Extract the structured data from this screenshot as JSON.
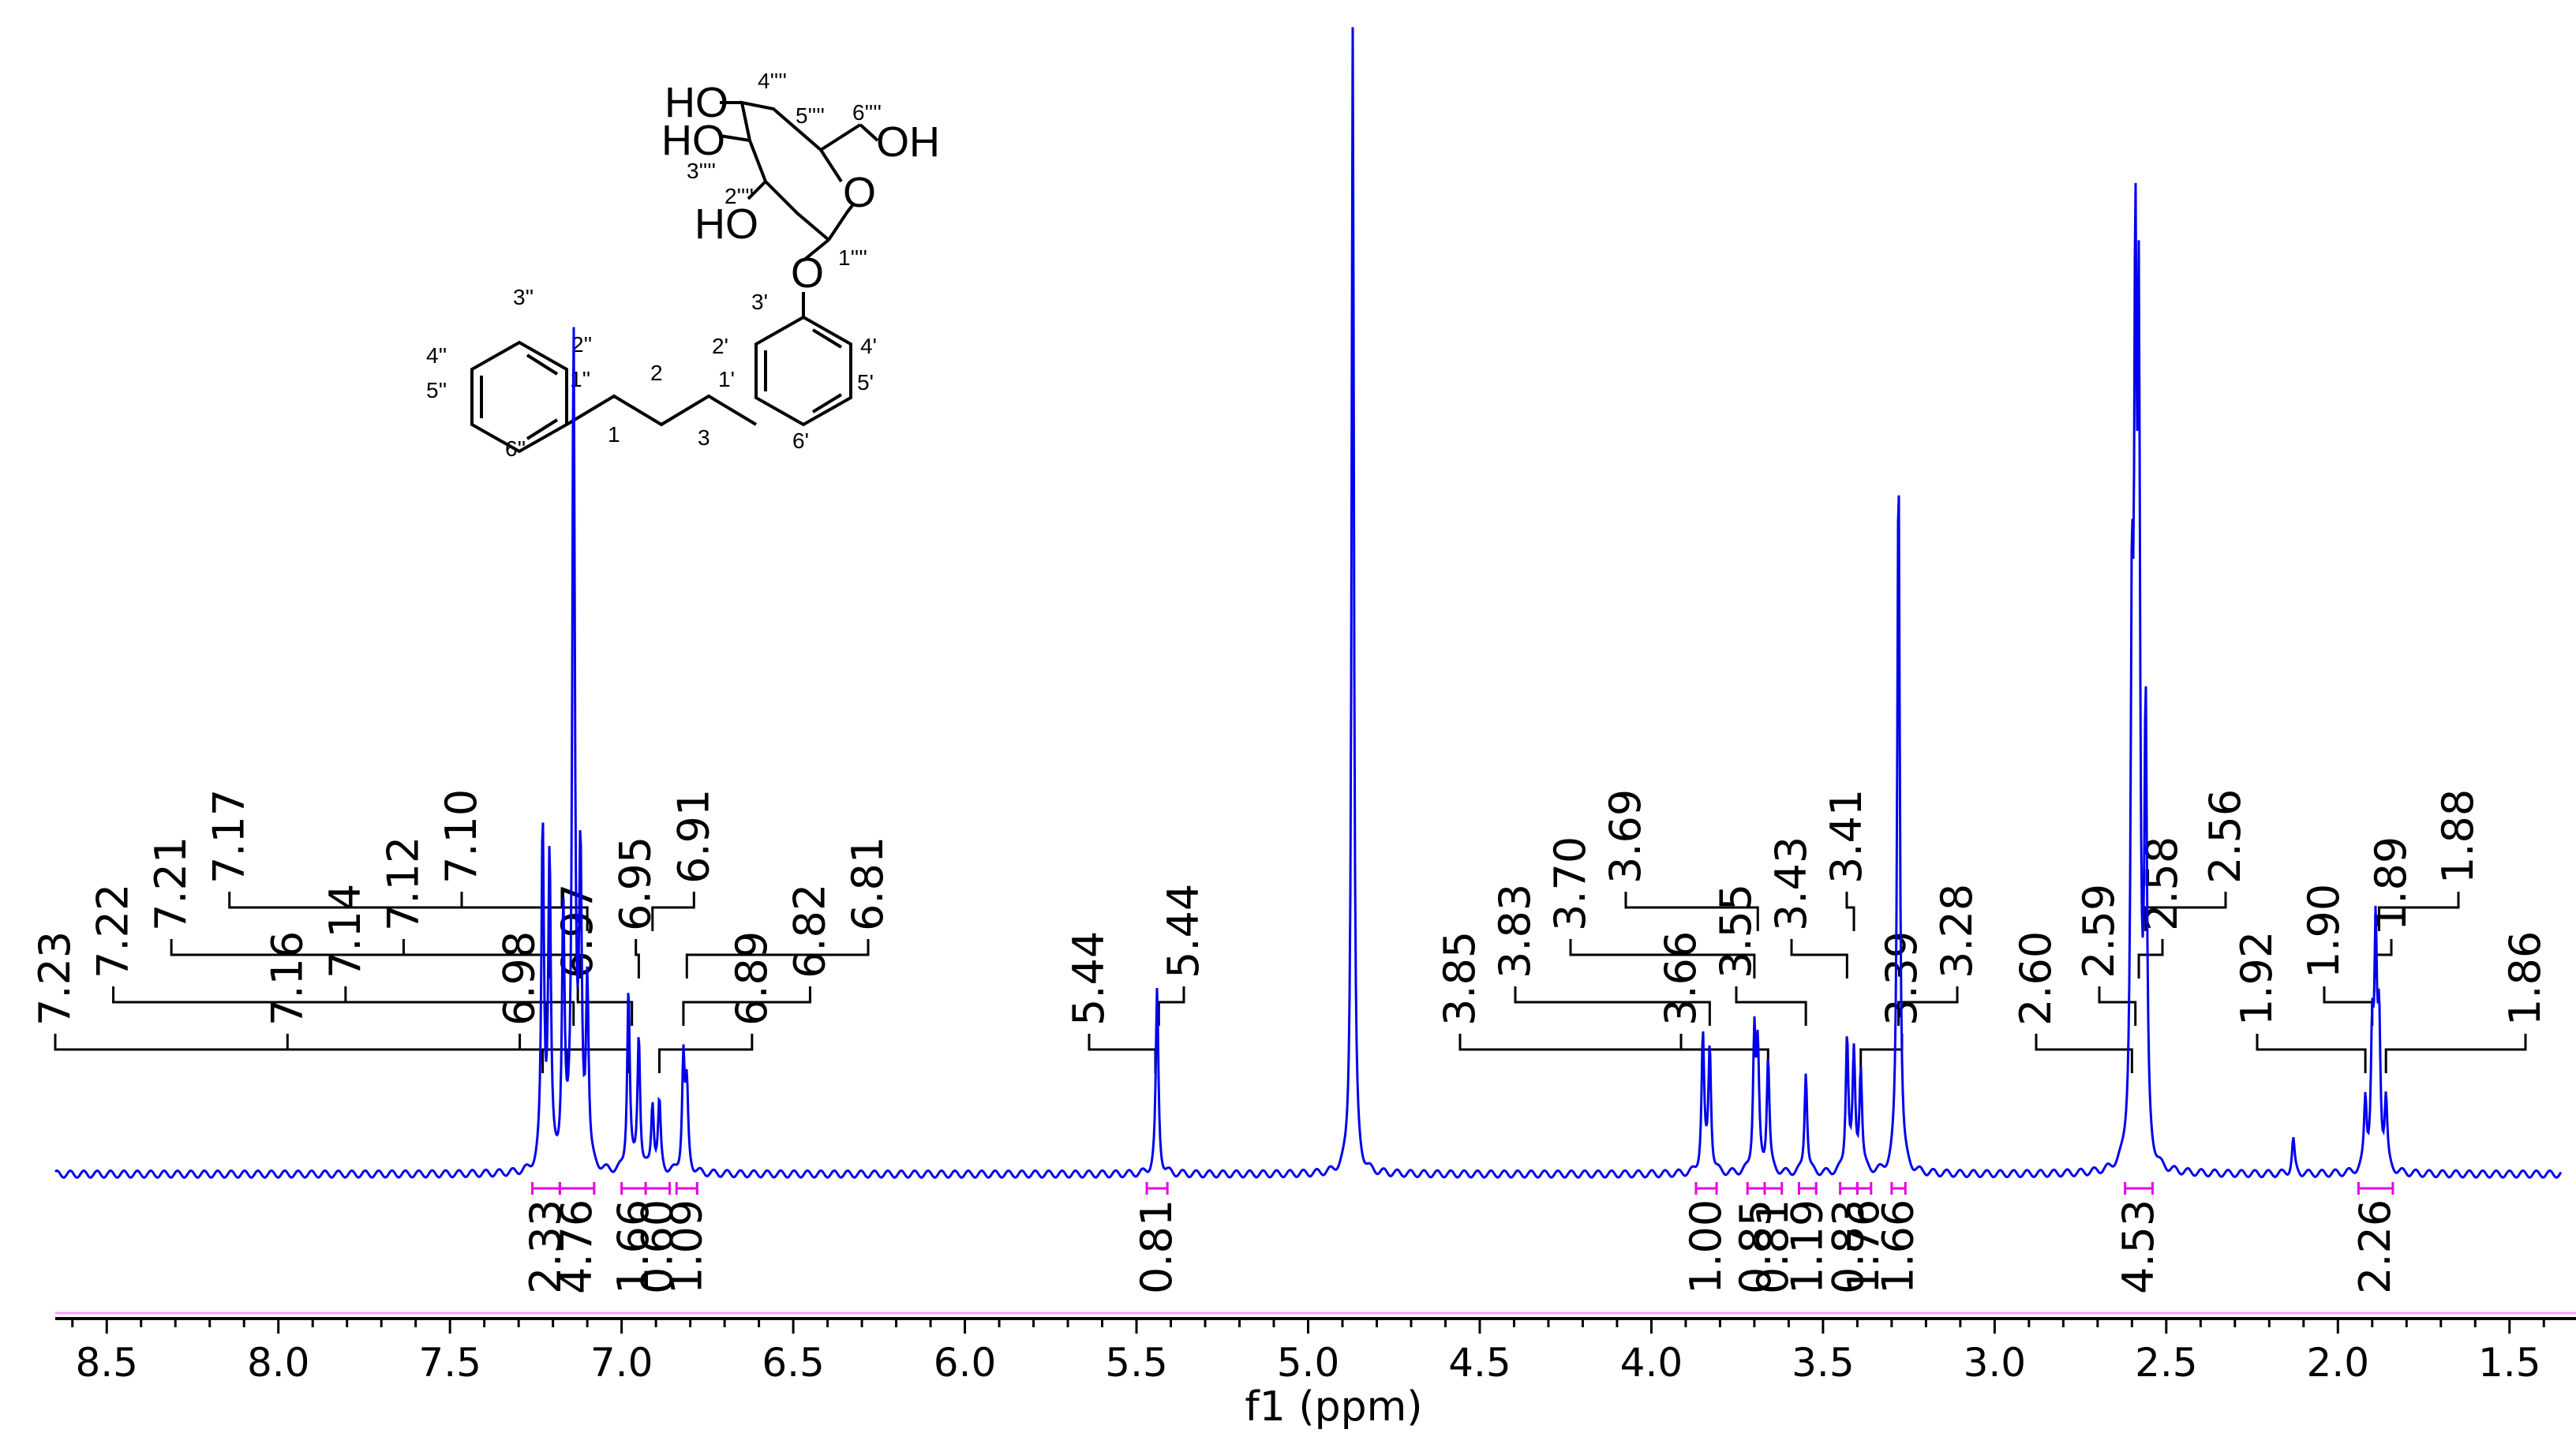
{
  "chart_data": {
    "type": "line",
    "xlabel": "f1 (ppm)",
    "xlim": [
      8.65,
      1.35
    ],
    "x_reversed": true,
    "ylim": [
      0,
      1
    ],
    "grid": false,
    "x_ticks": [
      "8.5",
      "8.0",
      "7.5",
      "7.0",
      "6.5",
      "6.0",
      "5.5",
      "5.0",
      "4.5",
      "4.0",
      "3.5",
      "3.0",
      "2.5",
      "2.0",
      "1.5"
    ],
    "colors": {
      "spectrum": "#0000ee",
      "integral": "#e600e6",
      "label": "#000000"
    },
    "series": [
      {
        "values": [
          {
            "x": 7.23,
            "y": 0.3
          },
          {
            "x": 7.21,
            "y": 0.27
          },
          {
            "x": 7.17,
            "y": 0.22
          },
          {
            "x": 7.14,
            "y": 0.73
          },
          {
            "x": 7.12,
            "y": 0.26
          },
          {
            "x": 7.1,
            "y": 0.16
          },
          {
            "x": 6.98,
            "y": 0.16
          },
          {
            "x": 6.95,
            "y": 0.12
          },
          {
            "x": 6.91,
            "y": 0.06
          },
          {
            "x": 6.89,
            "y": 0.06
          },
          {
            "x": 6.82,
            "y": 0.1
          },
          {
            "x": 6.81,
            "y": 0.07
          },
          {
            "x": 5.44,
            "y": 0.16
          },
          {
            "x": 4.87,
            "y": 1.0
          },
          {
            "x": 3.85,
            "y": 0.12
          },
          {
            "x": 3.83,
            "y": 0.11
          },
          {
            "x": 3.7,
            "y": 0.12
          },
          {
            "x": 3.69,
            "y": 0.1
          },
          {
            "x": 3.66,
            "y": 0.1
          },
          {
            "x": 3.55,
            "y": 0.09
          },
          {
            "x": 3.43,
            "y": 0.12
          },
          {
            "x": 3.41,
            "y": 0.1
          },
          {
            "x": 3.39,
            "y": 0.09
          },
          {
            "x": 3.28,
            "y": 0.62
          },
          {
            "x": 2.6,
            "y": 0.42
          },
          {
            "x": 2.59,
            "y": 0.68
          },
          {
            "x": 2.58,
            "y": 0.66
          },
          {
            "x": 2.56,
            "y": 0.38
          },
          {
            "x": 1.92,
            "y": 0.06
          },
          {
            "x": 1.9,
            "y": 0.11
          },
          {
            "x": 1.89,
            "y": 0.19
          },
          {
            "x": 1.88,
            "y": 0.12
          },
          {
            "x": 1.86,
            "y": 0.06
          },
          {
            "x": 2.13,
            "y": 0.03
          }
        ]
      }
    ],
    "peak_labels": [
      {
        "text": "7.23",
        "ppm": 7.23
      },
      {
        "text": "7.22",
        "ppm": 7.22
      },
      {
        "text": "7.21",
        "ppm": 7.21
      },
      {
        "text": "7.17",
        "ppm": 7.17
      },
      {
        "text": "7.16",
        "ppm": 7.16
      },
      {
        "text": "7.14",
        "ppm": 7.14
      },
      {
        "text": "7.12",
        "ppm": 7.12
      },
      {
        "text": "7.10",
        "ppm": 7.1
      },
      {
        "text": "6.98",
        "ppm": 6.98
      },
      {
        "text": "6.97",
        "ppm": 6.97
      },
      {
        "text": "6.95",
        "ppm": 6.95
      },
      {
        "text": "6.91",
        "ppm": 6.91
      },
      {
        "text": "6.89",
        "ppm": 6.89
      },
      {
        "text": "6.82",
        "ppm": 6.82
      },
      {
        "text": "6.81",
        "ppm": 6.81
      },
      {
        "text": "5.44",
        "ppm": 5.445
      },
      {
        "text": "5.44",
        "ppm": 5.435
      },
      {
        "text": "3.85",
        "ppm": 3.85
      },
      {
        "text": "3.83",
        "ppm": 3.83
      },
      {
        "text": "3.70",
        "ppm": 3.7
      },
      {
        "text": "3.69",
        "ppm": 3.69
      },
      {
        "text": "3.66",
        "ppm": 3.66
      },
      {
        "text": "3.55",
        "ppm": 3.55
      },
      {
        "text": "3.43",
        "ppm": 3.43
      },
      {
        "text": "3.41",
        "ppm": 3.41
      },
      {
        "text": "3.39",
        "ppm": 3.39
      },
      {
        "text": "3.28",
        "ppm": 3.28
      },
      {
        "text": "2.60",
        "ppm": 2.6
      },
      {
        "text": "2.59",
        "ppm": 2.59
      },
      {
        "text": "2.58",
        "ppm": 2.58
      },
      {
        "text": "2.56",
        "ppm": 2.56
      },
      {
        "text": "1.92",
        "ppm": 1.92
      },
      {
        "text": "1.90",
        "ppm": 1.9
      },
      {
        "text": "1.89",
        "ppm": 1.89
      },
      {
        "text": "1.88",
        "ppm": 1.88
      },
      {
        "text": "1.86",
        "ppm": 1.86
      }
    ],
    "integrals": [
      {
        "value": "2.33",
        "from": 7.26,
        "to": 7.18
      },
      {
        "value": "4.76",
        "from": 7.18,
        "to": 7.08
      },
      {
        "value": "1.66",
        "from": 7.0,
        "to": 6.93
      },
      {
        "value": "0.60",
        "from": 6.93,
        "to": 6.86
      },
      {
        "value": "1.09",
        "from": 6.84,
        "to": 6.78
      },
      {
        "value": "0.81",
        "from": 5.47,
        "to": 5.41
      },
      {
        "value": "1.00",
        "from": 3.87,
        "to": 3.81
      },
      {
        "value": "0.85",
        "from": 3.72,
        "to": 3.67
      },
      {
        "value": "0.81",
        "from": 3.67,
        "to": 3.62
      },
      {
        "value": "1.19",
        "from": 3.57,
        "to": 3.52
      },
      {
        "value": "0.83",
        "from": 3.45,
        "to": 3.4
      },
      {
        "value": "1.76",
        "from": 3.4,
        "to": 3.36
      },
      {
        "value": "1.66",
        "from": 3.3,
        "to": 3.26
      },
      {
        "value": "4.53",
        "from": 2.62,
        "to": 2.54
      },
      {
        "value": "2.26",
        "from": 1.94,
        "to": 1.84
      }
    ]
  },
  "structure": {
    "atom_labels": {
      "ho_top": "HO",
      "ho_mid": "HO",
      "ho_low": "HO",
      "oh_right": "OH",
      "o_ring": "O",
      "o_link": "O",
      "n_4g": "4''''",
      "n_5g": "5''''",
      "n_6g": "6''''",
      "n_3g": "3''''",
      "n_2g": "2''''",
      "n_1g": "1''''",
      "n_3p": "3'",
      "n_2p": "2'",
      "n_1p": "1'",
      "n_4p": "4'",
      "n_5p": "5'",
      "n_6p": "6'",
      "n_3pp": "3''",
      "n_2pp": "2''",
      "n_1pp": "1''",
      "n_4pp": "4''",
      "n_5pp": "5''",
      "n_6pp": "6''",
      "n_1": "1",
      "n_2": "2",
      "n_3": "3"
    }
  }
}
